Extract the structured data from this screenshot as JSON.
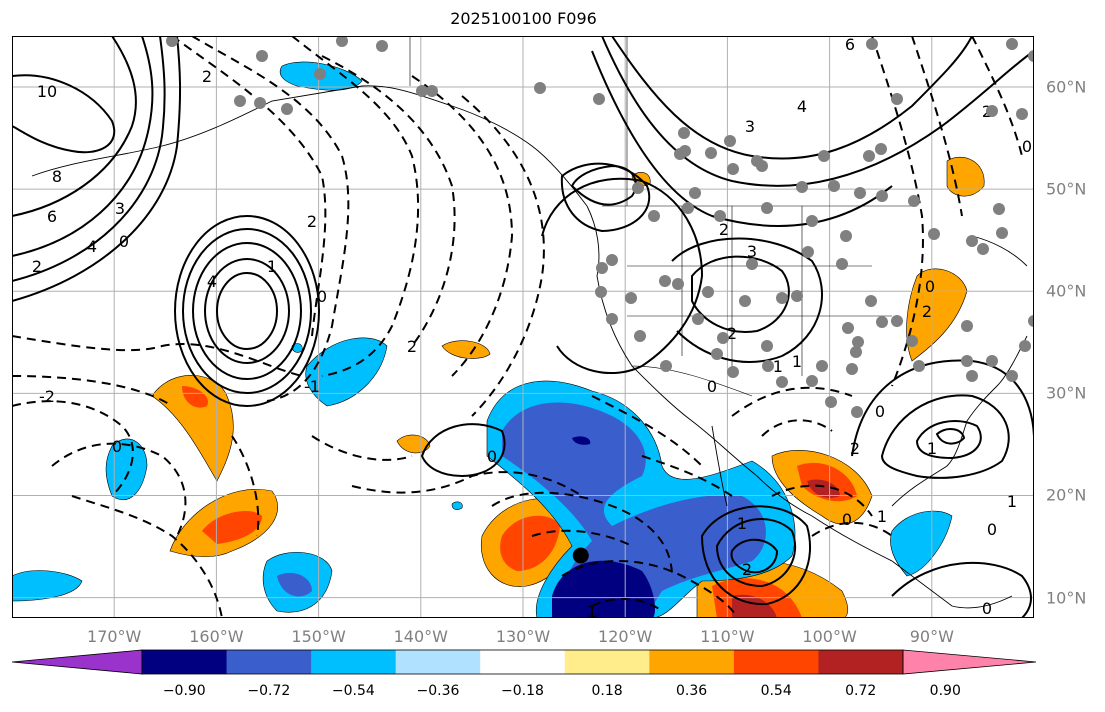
{
  "title": "2025100100 F096",
  "map": {
    "lon_range": [
      -180,
      -80
    ],
    "lat_range": [
      8,
      65
    ],
    "lat_labels": [
      {
        "lat": 60,
        "text": "60°N"
      },
      {
        "lat": 50,
        "text": "50°N"
      },
      {
        "lat": 40,
        "text": "40°N"
      },
      {
        "lat": 30,
        "text": "30°N"
      },
      {
        "lat": 20,
        "text": "20°N"
      },
      {
        "lat": 10,
        "text": "10°N"
      }
    ],
    "lon_labels": [
      {
        "lon": -170,
        "text": "170°W"
      },
      {
        "lon": -160,
        "text": "160°W"
      },
      {
        "lon": -150,
        "text": "150°W"
      },
      {
        "lon": -140,
        "text": "140°W"
      },
      {
        "lon": -130,
        "text": "130°W"
      },
      {
        "lon": -120,
        "text": "120°W"
      },
      {
        "lon": -110,
        "text": "110°W"
      },
      {
        "lon": -100,
        "text": "100°W"
      },
      {
        "lon": -90,
        "text": "90°W"
      }
    ],
    "gridline_color": "#b0b0b0",
    "contour_labels": [
      "10",
      "8",
      "6",
      "4",
      "3",
      "2",
      "0",
      "2",
      "4",
      "2",
      "-1",
      "2",
      "1",
      "0",
      "3",
      "2",
      "2",
      "3",
      "4",
      "6",
      "2",
      "0",
      "1",
      "0",
      "1",
      "0",
      "1",
      "2",
      "-1",
      "1",
      "0",
      "0",
      "-2",
      "0",
      "2",
      "1",
      "0",
      "1",
      "0",
      "2",
      "0"
    ],
    "marker_color": "#808080",
    "marker_count": 90,
    "black_marker": {
      "lon": -122,
      "lat": 15
    }
  },
  "colorbar": {
    "ticks": [
      "−0.90",
      "−0.72",
      "−0.54",
      "−0.36",
      "−0.18",
      "0.18",
      "0.36",
      "0.54",
      "0.72",
      "0.90"
    ],
    "colors": [
      "#9933cc",
      "#000080",
      "#3a5fcd",
      "#00bfff",
      "#b0e2ff",
      "#ffffff",
      "#ffec8b",
      "#ffa500",
      "#ff4500",
      "#b22222",
      "#ff82ab"
    ]
  }
}
